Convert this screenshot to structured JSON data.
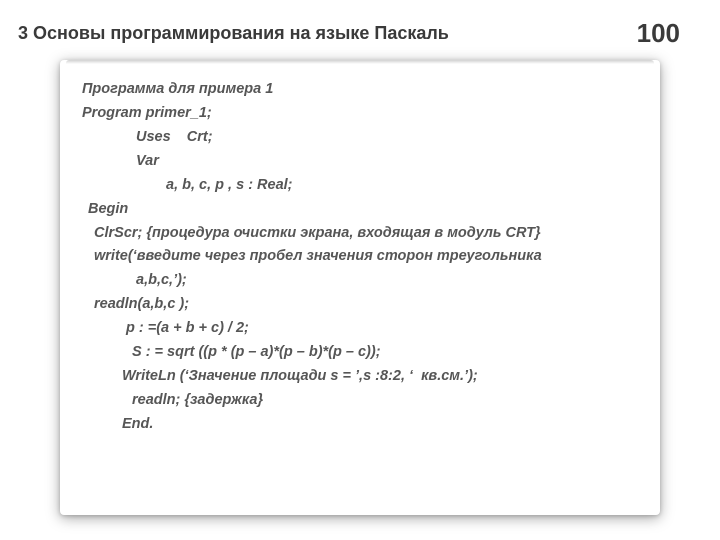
{
  "header": {
    "chapter": "3 Основы программирования на языке Паскаль",
    "page": "100"
  },
  "code": {
    "l01": "Программа для примера 1",
    "l02": "Program primer_1;",
    "l03": "Uses    Crt;",
    "l04": "Var",
    "l05": "a, b, c, p , s : Real;",
    "l06": "Begin",
    "l07": "ClrScr; {процедура очистки экрана, входящая в модуль CRT}",
    "l08a": "write(‘введите через пробел значения сторон треугольника",
    "l08b": "a,b,c,’);",
    "l09": "readln(a,b,c );",
    "l10": "p : =(a + b + c) / 2;",
    "l11": "S : = sqrt ((p * (p – a)*(p – b)*(p – c));",
    "l12": "WriteLn (‘Значение площади s = ’,s :8:2, ‘  кв.см.’);",
    "l13": "readln; {задержка}",
    "l14": "End."
  },
  "style": {
    "text_color": "#565656",
    "header_color": "#3a3a3a",
    "background": "#ffffff",
    "font_style": "italic",
    "font_weight": "bold",
    "font_size_pt": 11,
    "header_font_size_pt": 14,
    "page_font_size_pt": 20
  }
}
